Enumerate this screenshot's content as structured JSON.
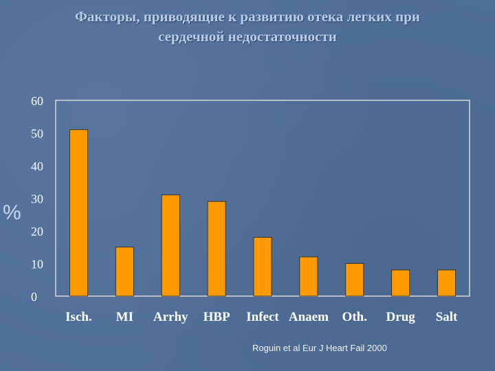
{
  "slide": {
    "title_line1": "Факторы, приводящие к развитию отека легких при",
    "title_line2": "сердечной недостаточности",
    "source": "Roguin et al Eur J Heart Fail 2000"
  },
  "colors": {
    "background": "#4f6e98",
    "bar": "#ff9a00",
    "tick_label": "#ffffff",
    "title": "#b9cde8"
  },
  "chart_data": {
    "type": "bar",
    "title": "",
    "xlabel": "",
    "ylabel": "%",
    "categories": [
      "Isch.",
      "MI",
      "Arrhy",
      "HBP",
      "Infect",
      "Anaem",
      "Oth.",
      "Drug",
      "Salt"
    ],
    "values": [
      51,
      15,
      31,
      29,
      18,
      12,
      10,
      8,
      8
    ],
    "ylim": [
      0,
      60
    ],
    "yticks": [
      0,
      10,
      20,
      30,
      40,
      50,
      60
    ],
    "grid": false,
    "legend": "none"
  }
}
